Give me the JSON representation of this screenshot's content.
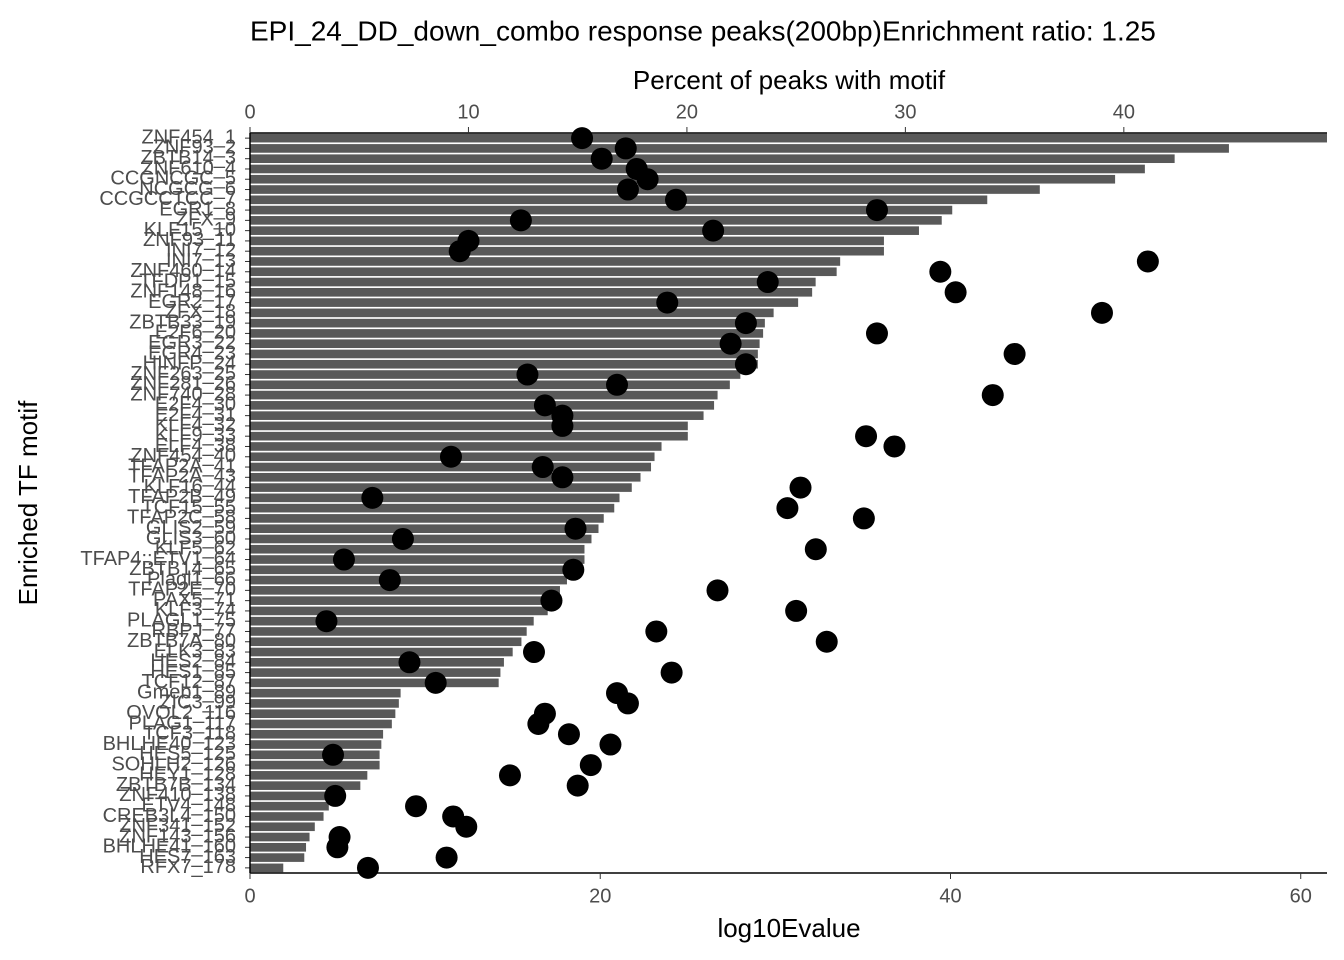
{
  "chart_data": {
    "type": "bar",
    "title": "EPI_24_DD_down_combo response peaks(200bp)Enrichment ratio: 1.25",
    "xlabel": "log10Evalue",
    "x2label": "Percent of peaks with motif",
    "ylabel": "Enriched TF motif",
    "categories": [
      "ZNF454_1",
      "ZNF93_2",
      "ZBTB14_3",
      "ZNF610_4",
      "CCGNCGC_5",
      "NCGCG_6",
      "CCGCCTCC_7",
      "EGR1_8",
      "ZFX_9",
      "KLF15_10",
      "ZNF93_11",
      "INI7_12",
      "INI7_13",
      "ZNF460_14",
      "TFDP1_15",
      "ZNF148_16",
      "EGR2_17",
      "ZFX_18",
      "ZBTB33_19",
      "E2F6_20",
      "EGR3_22",
      "EGR4_23",
      "HINFP_24",
      "ZNF263_25",
      "ZNF281_26",
      "ZNF740_28",
      "E2F4_30",
      "E2F4_31",
      "KLF4_32",
      "KLF9_33",
      "ELF4_38",
      "ZNF454_40",
      "TFAP2A_41",
      "TFAP2A_43",
      "KLF16_44",
      "TFAP2B_49",
      "TCF15_55",
      "TFAP2C_58",
      "GLIS2_59",
      "GLIS3_60",
      "KLF5_62",
      "TFAP4::ETV1_64",
      "ZBTB14_65",
      "Plagl1_66",
      "TFAP2E_70",
      "PAX5_71",
      "KLF3_74",
      "PLAGL1_75",
      "RBPJ_77",
      "ZBTB7A_80",
      "ELK3_83",
      "HES2_84",
      "HES1_85",
      "TCF12_87",
      "Gmeb1_89",
      "ZIC3_99",
      "OVOL2_116",
      "PLAG1_117",
      "TCF3_118",
      "BHLHE40_123",
      "HES5_125",
      "SOHLH2_126",
      "HEY1_128",
      "ZBTB7B_134",
      "ZNF410_138",
      "ETV4_148",
      "CREB3L4_150",
      "ZNF341_152",
      "ZNF143_156",
      "BHLHE41_160",
      "HES7_163",
      "RFX7_178"
    ],
    "values": [
      61.5,
      55.9,
      52.8,
      51.1,
      49.4,
      45.1,
      42.1,
      40.1,
      39.5,
      38.2,
      36.2,
      36.2,
      33.7,
      33.5,
      32.3,
      32.1,
      31.3,
      29.9,
      29.4,
      29.3,
      29.1,
      29.0,
      29.0,
      28.0,
      27.4,
      26.7,
      26.5,
      25.9,
      25.0,
      25.0,
      23.5,
      23.1,
      22.9,
      22.3,
      21.8,
      21.1,
      20.8,
      20.2,
      19.9,
      19.5,
      19.1,
      19.1,
      18.6,
      18.1,
      17.7,
      17.2,
      17.0,
      16.2,
      15.8,
      15.5,
      15.0,
      14.5,
      14.3,
      14.2,
      8.6,
      8.5,
      8.3,
      8.1,
      7.6,
      7.5,
      7.4,
      7.4,
      6.7,
      6.3,
      5.4,
      4.5,
      4.2,
      3.7,
      3.4,
      3.2,
      3.1,
      1.9
    ],
    "dot_values": [
      15.2,
      17.2,
      16.1,
      17.7,
      18.2,
      17.3,
      19.5,
      28.7,
      12.4,
      21.2,
      10.0,
      9.6,
      41.1,
      31.6,
      23.7,
      32.3,
      19.1,
      39.0,
      22.7,
      28.7,
      22.0,
      35.0,
      22.7,
      12.7,
      16.8,
      34.0,
      13.5,
      14.3,
      14.3,
      28.2,
      29.5,
      9.2,
      13.4,
      14.3,
      25.2,
      5.6,
      24.6,
      28.1,
      14.9,
      7.0,
      25.9,
      4.3,
      14.8,
      6.4,
      21.4,
      13.8,
      25.0,
      3.5,
      18.6,
      26.4,
      13.0,
      7.3,
      19.3,
      8.5,
      16.8,
      17.3,
      13.5,
      13.2,
      14.6,
      16.5,
      3.8,
      15.6,
      11.9,
      15.0,
      3.9,
      7.6,
      9.3,
      9.9,
      4.1,
      4.0,
      9.0,
      5.4
    ],
    "bar_color": "#595959",
    "dot_color": "#000000",
    "xlim": [
      0,
      61.5
    ],
    "xticks": [
      0,
      20,
      40,
      60
    ],
    "x2lim": [
      0,
      49.3
    ],
    "x2ticks": [
      0,
      10,
      20,
      30,
      40
    ]
  }
}
